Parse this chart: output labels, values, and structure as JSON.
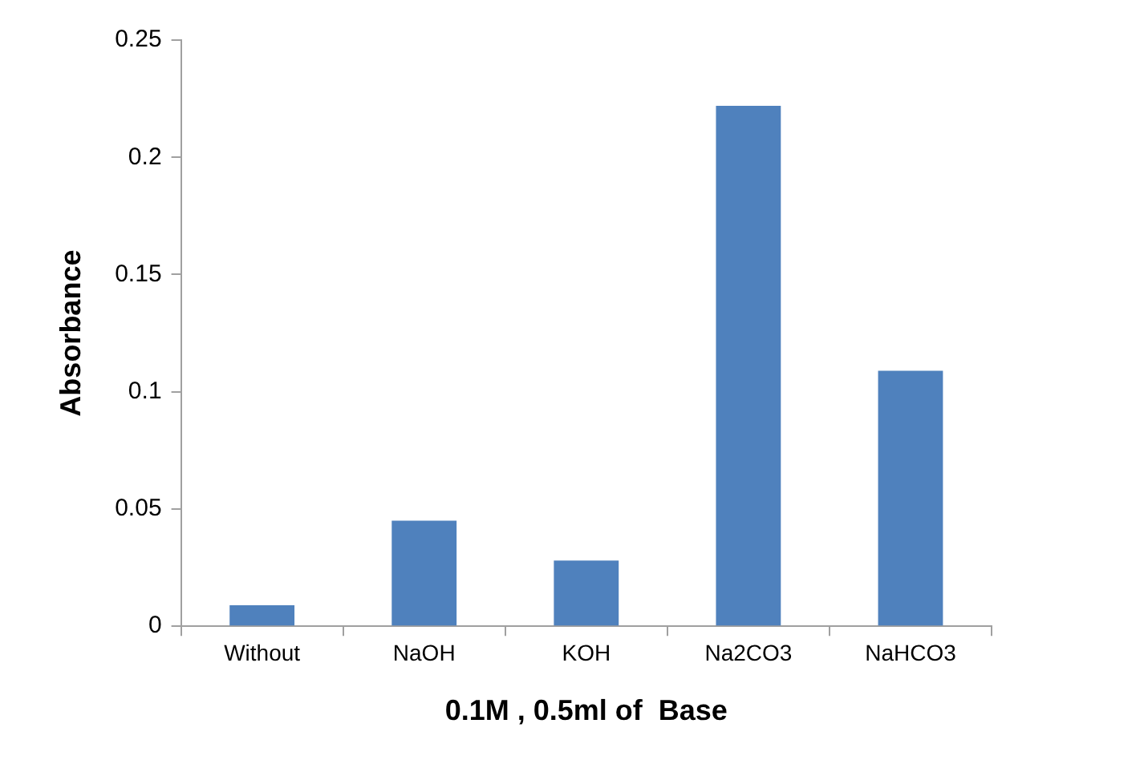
{
  "chart_data": {
    "type": "bar",
    "xlabel": "0.1M , 0.5ml of  Base",
    "ylabel": "Absorbance",
    "categories": [
      "Without",
      "NaOH",
      "KOH",
      "Na2CO3",
      "NaHCO3"
    ],
    "values": [
      0.009,
      0.045,
      0.028,
      0.222,
      0.109
    ],
    "color": "#4f81bd",
    "ylim": [
      0,
      0.25
    ],
    "yticks": [
      0,
      0.05,
      0.1,
      0.15,
      0.2,
      0.25
    ],
    "grid": false,
    "legend": false
  }
}
